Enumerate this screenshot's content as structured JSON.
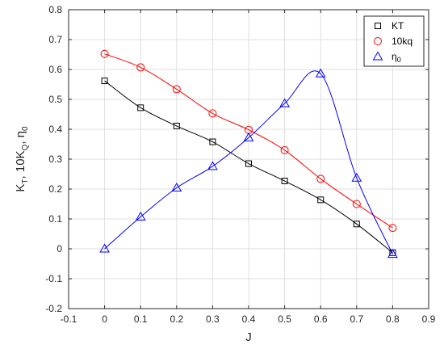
{
  "chart_data": {
    "type": "line",
    "xlabel": "J",
    "ylabel": "K_T, 10K_Q, η_0",
    "xlim": [
      -0.1,
      0.9
    ],
    "ylim": [
      -0.2,
      0.8
    ],
    "xticks": [
      "-0.1",
      "0",
      "0.1",
      "0.2",
      "0.3",
      "0.4",
      "0.5",
      "0.6",
      "0.7",
      "0.8",
      "0.9"
    ],
    "yticks": [
      "-0.2",
      "-0.1",
      "0",
      "0.1",
      "0.2",
      "0.3",
      "0.4",
      "0.5",
      "0.6",
      "0.7",
      "0.8"
    ],
    "grid": true,
    "legend_position": "top-right",
    "x": [
      0,
      0.1,
      0.2,
      0.3,
      0.4,
      0.5,
      0.6,
      0.7,
      0.8
    ],
    "series": [
      {
        "name": "KT",
        "marker": "square",
        "color": "#000000",
        "values": [
          0.562,
          0.472,
          0.411,
          0.358,
          0.285,
          0.227,
          0.164,
          0.083,
          -0.013
        ]
      },
      {
        "name": "10kq",
        "marker": "circle",
        "color": "#ff0000",
        "values": [
          0.652,
          0.607,
          0.534,
          0.453,
          0.398,
          0.33,
          0.234,
          0.15,
          0.07
        ]
      },
      {
        "name": "η_0",
        "marker": "triangle",
        "color": "#0000ff",
        "values": [
          0.0,
          0.107,
          0.204,
          0.276,
          0.372,
          0.486,
          0.586,
          0.237,
          -0.018
        ]
      }
    ]
  }
}
